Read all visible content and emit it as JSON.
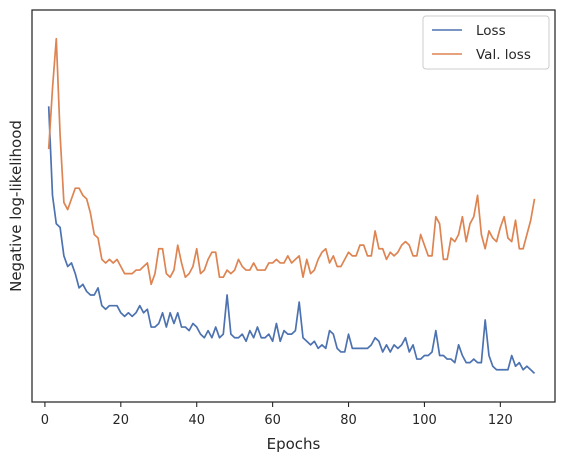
{
  "chart_data": {
    "type": "line",
    "title": "",
    "xlabel": "Epochs",
    "ylabel": "Negative log-likelihood",
    "xlim": [
      -3.4,
      134.4
    ],
    "ylim": [
      0,
      100
    ],
    "xticks": [
      0,
      20,
      40,
      60,
      80,
      100,
      120
    ],
    "y_tick_labels_shown": false,
    "grid": false,
    "legend_position": "top-right",
    "series": [
      {
        "name": "Loss",
        "color": "#4c72b0",
        "x": [
          1,
          2,
          3,
          4,
          5,
          6,
          7,
          8,
          9,
          10,
          11,
          12,
          13,
          14,
          15,
          16,
          17,
          18,
          19,
          20,
          21,
          22,
          23,
          24,
          25,
          26,
          27,
          28,
          29,
          30,
          31,
          32,
          33,
          34,
          35,
          36,
          37,
          38,
          39,
          40,
          41,
          42,
          43,
          44,
          45,
          46,
          47,
          48,
          49,
          50,
          51,
          52,
          53,
          54,
          55,
          56,
          57,
          58,
          59,
          60,
          61,
          62,
          63,
          64,
          65,
          66,
          67,
          68,
          69,
          70,
          71,
          72,
          73,
          74,
          75,
          76,
          77,
          78,
          79,
          80,
          81,
          82,
          83,
          84,
          85,
          86,
          87,
          88,
          89,
          90,
          91,
          92,
          93,
          94,
          95,
          96,
          97,
          98,
          99,
          100,
          101,
          102,
          103,
          104,
          105,
          106,
          107,
          108,
          109,
          110,
          111,
          112,
          113,
          114,
          115,
          116,
          117,
          118,
          119,
          120,
          121,
          122,
          123,
          124,
          125,
          126,
          127,
          128,
          129
        ],
        "values": [
          78,
          53,
          45,
          44,
          36,
          33,
          34,
          31,
          27,
          28,
          26,
          25,
          25,
          27,
          22,
          21,
          22,
          22,
          22,
          20,
          19,
          20,
          19,
          20,
          22,
          20,
          21,
          16,
          16,
          17,
          20,
          16,
          20,
          17,
          20,
          16,
          16,
          15,
          17,
          16,
          14,
          13,
          15,
          13,
          16,
          13,
          14,
          25,
          14,
          13,
          13,
          14,
          12,
          15,
          13,
          16,
          13,
          13,
          14,
          12,
          17,
          12,
          15,
          14,
          14,
          15,
          23,
          13,
          12,
          11,
          12,
          10,
          11,
          10,
          15,
          14,
          10,
          9,
          9,
          14,
          10,
          10,
          10,
          10,
          10,
          11,
          13,
          12,
          9,
          11,
          9,
          11,
          10,
          11,
          13,
          9,
          11,
          7,
          7,
          8,
          8,
          9,
          15,
          8,
          8,
          7,
          7,
          6,
          11,
          8,
          6,
          6,
          7,
          6,
          6,
          18,
          8,
          5,
          4,
          4,
          4,
          4,
          8,
          5,
          6,
          4,
          5,
          4,
          3
        ],
        "values_note_units": "percent of vertical axis range"
      },
      {
        "name": "Val. loss",
        "color": "#dd8452",
        "x": [
          1,
          2,
          3,
          4,
          5,
          6,
          7,
          8,
          9,
          10,
          11,
          12,
          13,
          14,
          15,
          16,
          17,
          18,
          19,
          20,
          21,
          22,
          23,
          24,
          25,
          26,
          27,
          28,
          29,
          30,
          31,
          32,
          33,
          34,
          35,
          36,
          37,
          38,
          39,
          40,
          41,
          42,
          43,
          44,
          45,
          46,
          47,
          48,
          49,
          50,
          51,
          52,
          53,
          54,
          55,
          56,
          57,
          58,
          59,
          60,
          61,
          62,
          63,
          64,
          65,
          66,
          67,
          68,
          69,
          70,
          71,
          72,
          73,
          74,
          75,
          76,
          77,
          78,
          79,
          80,
          81,
          82,
          83,
          84,
          85,
          86,
          87,
          88,
          89,
          90,
          91,
          92,
          93,
          94,
          95,
          96,
          97,
          98,
          99,
          100,
          101,
          102,
          103,
          104,
          105,
          106,
          107,
          108,
          109,
          110,
          111,
          112,
          113,
          114,
          115,
          116,
          117,
          118,
          119,
          120,
          121,
          122,
          123,
          124,
          125,
          126,
          127,
          128,
          129
        ],
        "values": [
          66,
          83,
          97,
          70,
          51,
          49,
          52,
          55,
          55,
          53,
          52,
          48,
          42,
          41,
          35,
          34,
          35,
          34,
          35,
          33,
          31,
          31,
          31,
          32,
          32,
          33,
          34,
          28,
          31,
          38,
          38,
          31,
          30,
          32,
          39,
          34,
          30,
          31,
          33,
          38,
          31,
          32,
          35,
          37,
          37,
          30,
          30,
          32,
          31,
          32,
          35,
          33,
          32,
          32,
          34,
          32,
          32,
          32,
          34,
          34,
          35,
          34,
          34,
          36,
          34,
          35,
          36,
          30,
          35,
          31,
          32,
          35,
          37,
          38,
          34,
          36,
          33,
          33,
          35,
          37,
          36,
          36,
          39,
          39,
          36,
          36,
          43,
          38,
          38,
          35,
          37,
          36,
          37,
          39,
          40,
          39,
          36,
          36,
          42,
          39,
          36,
          36,
          47,
          45,
          35,
          35,
          41,
          40,
          42,
          47,
          40,
          45,
          47,
          53,
          42,
          38,
          43,
          41,
          40,
          44,
          47,
          41,
          40,
          46,
          38,
          38,
          42,
          46,
          52
        ],
        "values_note_units": "percent of vertical axis range"
      }
    ]
  }
}
